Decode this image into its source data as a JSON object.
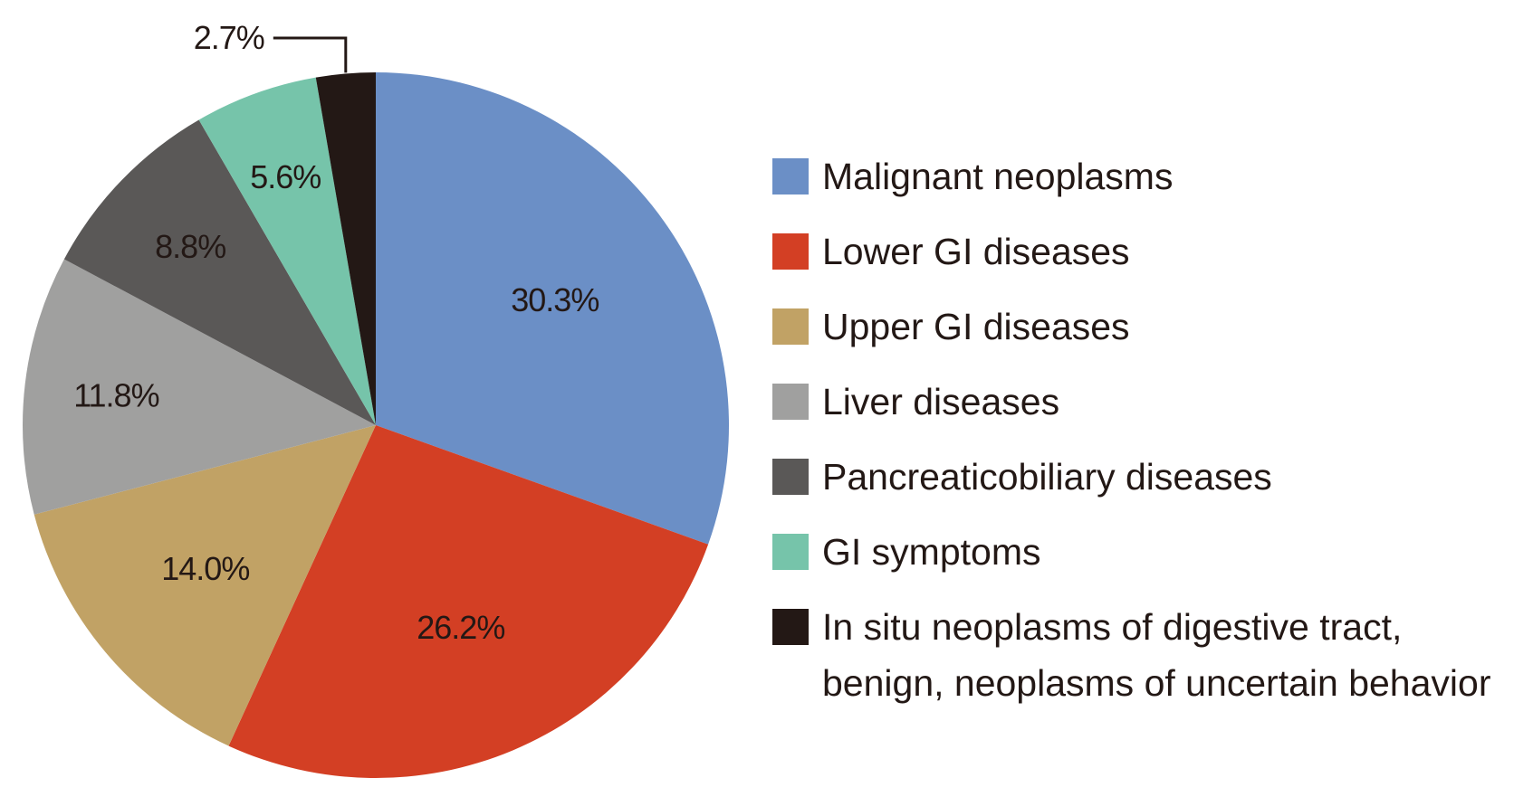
{
  "chart_data": {
    "type": "pie",
    "legend_position": "right",
    "slices": [
      {
        "name": "Malignant neoplasms",
        "label": "30.3%",
        "value": 30.3,
        "color": "#6b8fc6"
      },
      {
        "name": "Lower GI diseases",
        "label": "26.2%",
        "value": 26.2,
        "color": "#d33f24"
      },
      {
        "name": "Upper GI diseases",
        "label": "14.0%",
        "value": 14.0,
        "color": "#c1a265"
      },
      {
        "name": "Liver diseases",
        "label": "11.8%",
        "value": 11.8,
        "color": "#a0a09f"
      },
      {
        "name": "Pancreaticobiliary diseases",
        "label": "8.8%",
        "value": 8.8,
        "color": "#5a5857"
      },
      {
        "name": "GI symptoms",
        "label": "5.6%",
        "value": 5.6,
        "color": "#76c4aa"
      },
      {
        "name": "In situ neoplasms of digestive tract, benign, neoplasms of uncertain behavior",
        "label": "2.7%",
        "value": 2.7,
        "color": "#231815"
      }
    ]
  }
}
